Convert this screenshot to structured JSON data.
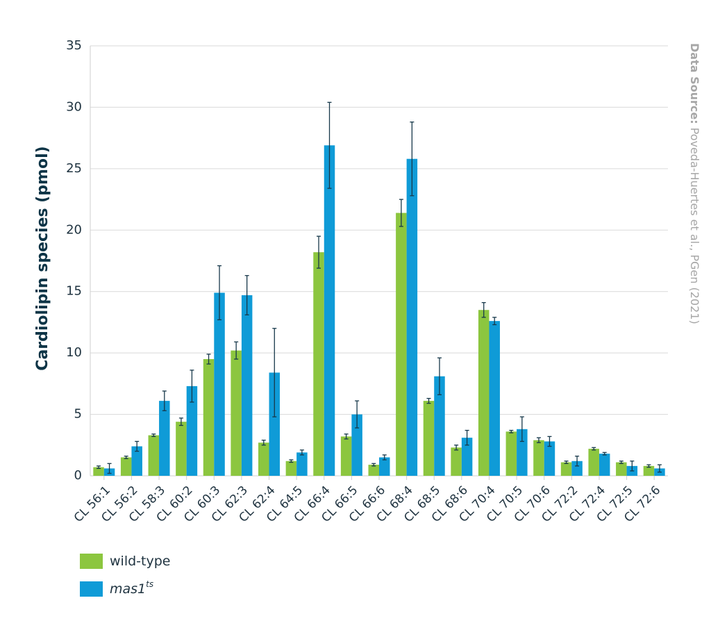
{
  "chart_data": {
    "type": "bar",
    "y_label": "Cardiolipin species (pmol)",
    "source_label": "Data Source:",
    "source": "Poveda-Huertes et al., PGen (2021)",
    "categories": [
      "CL 56:1",
      "CL 56:2",
      "CL 58:3",
      "CL 60:2",
      "CL 60:3",
      "CL 62:3",
      "CL 62:4",
      "CL 64:5",
      "CL 66:4",
      "CL 66:5",
      "CL 66:6",
      "CL 68:4",
      "CL 68:5",
      "CL 68:6",
      "CL 70:4",
      "CL 70:5",
      "CL 70:6",
      "CL 72:2",
      "CL 72:4",
      "CL 72:5",
      "CL 72:6"
    ],
    "series": [
      {
        "name": "wild-type",
        "color": "#8cc63f",
        "values": [
          0.7,
          1.5,
          3.3,
          4.4,
          9.5,
          10.2,
          2.7,
          1.2,
          18.2,
          3.2,
          0.9,
          21.4,
          6.1,
          2.3,
          13.5,
          3.6,
          2.9,
          1.1,
          2.2,
          1.1,
          0.8
        ],
        "errors": [
          0.1,
          0.1,
          0.1,
          0.3,
          0.4,
          0.7,
          0.2,
          0.1,
          1.3,
          0.2,
          0.1,
          1.1,
          0.2,
          0.2,
          0.6,
          0.1,
          0.2,
          0.1,
          0.1,
          0.1,
          0.1
        ]
      },
      {
        "name": "mas1",
        "name_superscript": "ts",
        "color": "#0f9bd7",
        "values": [
          0.6,
          2.4,
          6.1,
          7.3,
          14.9,
          14.7,
          8.4,
          1.9,
          26.9,
          5.0,
          1.5,
          25.8,
          8.1,
          3.1,
          12.6,
          3.8,
          2.8,
          1.2,
          1.8,
          0.8,
          0.6
        ],
        "errors": [
          0.4,
          0.4,
          0.8,
          1.3,
          2.2,
          1.6,
          3.6,
          0.2,
          3.5,
          1.1,
          0.2,
          3.0,
          1.5,
          0.6,
          0.3,
          1.0,
          0.4,
          0.4,
          0.1,
          0.4,
          0.3
        ]
      }
    ],
    "error_color": "#17384a",
    "ylim": [
      0,
      35
    ],
    "yticks": [
      0,
      5,
      10,
      15,
      20,
      25,
      30,
      35
    ],
    "grid": true
  }
}
